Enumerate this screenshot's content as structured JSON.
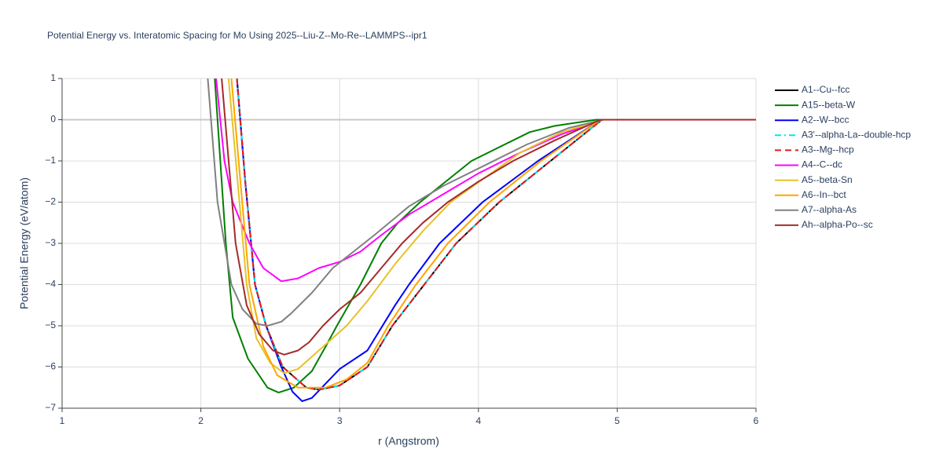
{
  "chart_data": {
    "type": "line",
    "title": "Potential Energy vs. Interatomic Spacing for Mo Using 2025--Liu-Z--Mo-Re--LAMMPS--ipr1",
    "xlabel": "r (Angstrom)",
    "ylabel": "Potential Energy (eV/atom)",
    "xlim": [
      1,
      6
    ],
    "xticks": [
      1,
      2,
      3,
      4,
      5,
      6
    ],
    "ylim": [
      -7,
      1
    ],
    "yticks": [
      {
        "value": -7,
        "label": "−7"
      },
      {
        "value": -6,
        "label": "−6"
      },
      {
        "value": -5,
        "label": "−5"
      },
      {
        "value": -4,
        "label": "−4"
      },
      {
        "value": -3,
        "label": "−3"
      },
      {
        "value": -2,
        "label": "−2"
      },
      {
        "value": -1,
        "label": "−1"
      },
      0,
      1
    ],
    "grid": true,
    "series": [
      {
        "name": "A1--Cu--fcc",
        "color": "#000000",
        "dash": "solid",
        "x": [
          2.26,
          2.32,
          2.39,
          2.47,
          2.59,
          2.76,
          2.85,
          3.0,
          3.2,
          3.38,
          3.61,
          3.84,
          4.15,
          4.52,
          4.89,
          6
        ],
        "values": [
          1,
          -1.5,
          -4,
          -5,
          -6,
          -6.5,
          -6.55,
          -6.45,
          -6.0,
          -5,
          -4,
          -3,
          -2,
          -1,
          0,
          0
        ]
      },
      {
        "name": "A15--beta-W",
        "color": "#008000",
        "dash": "solid",
        "x": [
          2.1,
          2.18,
          2.23,
          2.34,
          2.48,
          2.56,
          2.67,
          2.8,
          2.9,
          2.98,
          3.15,
          3.3,
          3.42,
          3.58,
          3.95,
          4.37,
          4.55,
          4.85,
          6
        ],
        "values": [
          1,
          -3,
          -4.8,
          -5.8,
          -6.5,
          -6.62,
          -6.5,
          -6.1,
          -5.5,
          -5,
          -4,
          -3,
          -2.5,
          -2,
          -1,
          -0.3,
          -0.15,
          0,
          0
        ]
      },
      {
        "name": "A2--W--bcc",
        "color": "#0000ff",
        "dash": "solid",
        "x": [
          2.26,
          2.32,
          2.39,
          2.47,
          2.58,
          2.66,
          2.73,
          2.8,
          3.0,
          3.2,
          3.4,
          3.5,
          3.72,
          4.03,
          4.43,
          4.88,
          6
        ],
        "values": [
          1,
          -1.5,
          -4,
          -5,
          -6,
          -6.6,
          -6.83,
          -6.75,
          -6.05,
          -5.6,
          -4.5,
          -4,
          -3,
          -2,
          -1,
          0,
          0
        ]
      },
      {
        "name": "A3'--alpha-La--double-hcp",
        "color": "#00e5ee",
        "dash": "dashdot",
        "x": [
          2.26,
          2.32,
          2.39,
          2.47,
          2.59,
          2.76,
          2.85,
          3.0,
          3.2,
          3.38,
          3.61,
          3.84,
          4.15,
          4.52,
          4.89,
          6
        ],
        "values": [
          1,
          -1.5,
          -4,
          -5,
          -6,
          -6.5,
          -6.55,
          -6.45,
          -6.0,
          -5,
          -4,
          -3,
          -2,
          -1,
          0,
          0
        ]
      },
      {
        "name": "A3--Mg--hcp",
        "color": "#e41a1c",
        "dash": "dash",
        "x": [
          2.26,
          2.32,
          2.39,
          2.47,
          2.59,
          2.76,
          2.85,
          3.0,
          3.2,
          3.38,
          3.61,
          3.84,
          4.15,
          4.52,
          4.89,
          6
        ],
        "values": [
          1,
          -1.5,
          -4,
          -5,
          -6,
          -6.5,
          -6.55,
          -6.45,
          -6.0,
          -5,
          -4,
          -3,
          -2,
          -1,
          0,
          0
        ]
      },
      {
        "name": "A4--C--dc",
        "color": "#ff00ff",
        "dash": "solid",
        "x": [
          2.11,
          2.17,
          2.23,
          2.35,
          2.45,
          2.58,
          2.7,
          2.85,
          3.0,
          3.15,
          3.3,
          3.5,
          3.75,
          4.0,
          4.3,
          4.6,
          4.9,
          6
        ],
        "values": [
          1,
          -1,
          -2,
          -3,
          -3.6,
          -3.92,
          -3.85,
          -3.6,
          -3.45,
          -3.2,
          -2.8,
          -2.3,
          -1.8,
          -1.3,
          -0.8,
          -0.35,
          0,
          0
        ]
      },
      {
        "name": "A5--beta-Sn",
        "color": "#e6c229",
        "dash": "solid",
        "x": [
          2.2,
          2.33,
          2.4,
          2.5,
          2.6,
          2.7,
          2.85,
          3.05,
          3.2,
          3.4,
          3.6,
          3.8,
          4.05,
          4.3,
          4.6,
          4.9,
          6
        ],
        "values": [
          1,
          -4,
          -5.3,
          -5.9,
          -6.15,
          -6.05,
          -5.6,
          -5.0,
          -4.4,
          -3.5,
          -2.7,
          -2,
          -1.4,
          -0.8,
          -0.3,
          0,
          0
        ]
      },
      {
        "name": "A6--In--bct",
        "color": "#ffa500",
        "dash": "solid",
        "x": [
          2.22,
          2.35,
          2.45,
          2.55,
          2.7,
          2.9,
          3.05,
          3.2,
          3.35,
          3.55,
          3.78,
          4.08,
          4.45,
          4.88,
          6
        ],
        "values": [
          1,
          -4,
          -5.5,
          -6.2,
          -6.5,
          -6.5,
          -6.3,
          -5.9,
          -5,
          -4,
          -3,
          -2,
          -1,
          0,
          0
        ]
      },
      {
        "name": "A7--alpha-As",
        "color": "#808080",
        "dash": "solid",
        "x": [
          2.05,
          2.12,
          2.22,
          2.3,
          2.4,
          2.48,
          2.58,
          2.65,
          2.8,
          2.95,
          3.1,
          3.25,
          3.5,
          3.75,
          4.05,
          4.35,
          4.65,
          4.9,
          6
        ],
        "values": [
          1,
          -2,
          -4,
          -4.6,
          -4.95,
          -5.0,
          -4.9,
          -4.7,
          -4.2,
          -3.6,
          -3.2,
          -2.8,
          -2.1,
          -1.6,
          -1.1,
          -0.6,
          -0.2,
          0,
          0
        ]
      },
      {
        "name": "Ah--alpha-Po--sc",
        "color": "#a52a2a",
        "dash": "solid",
        "x": [
          2.15,
          2.25,
          2.33,
          2.42,
          2.52,
          2.6,
          2.7,
          2.78,
          2.88,
          3.0,
          3.15,
          3.3,
          3.45,
          3.6,
          3.78,
          4.0,
          4.25,
          4.55,
          4.88,
          6
        ],
        "values": [
          1,
          -3,
          -4.5,
          -5.2,
          -5.6,
          -5.7,
          -5.6,
          -5.4,
          -5,
          -4.6,
          -4.2,
          -3.6,
          -3,
          -2.5,
          -2,
          -1.5,
          -1,
          -0.5,
          0,
          0
        ]
      }
    ]
  }
}
